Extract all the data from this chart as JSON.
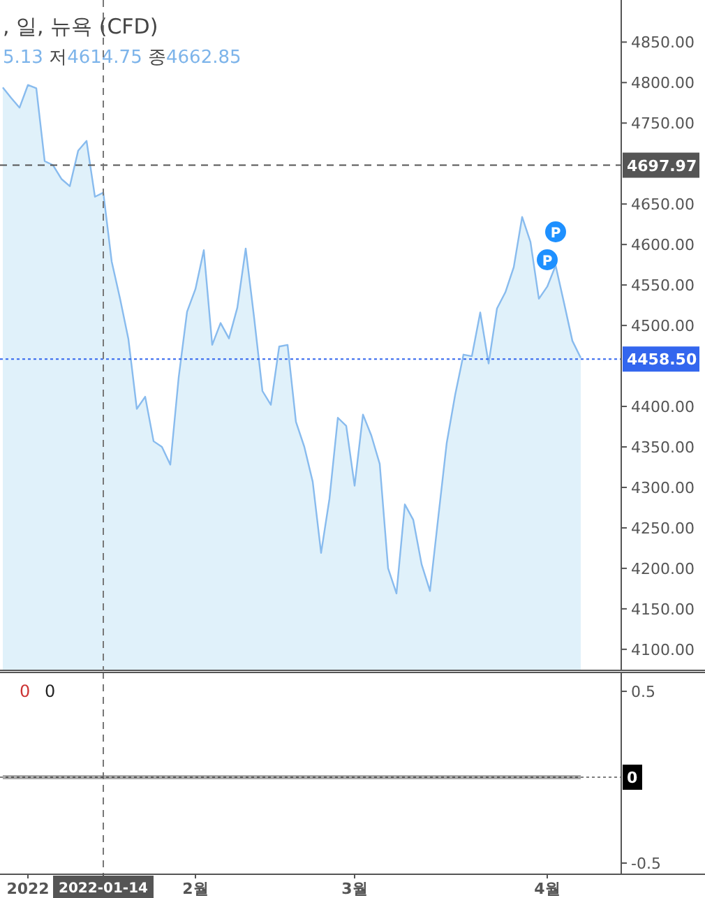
{
  "chart_data": [
    {
      "type": "area",
      "title": ", 일, 뉴욕 (CFD)",
      "subtitle": "5.13 저4614.75 종4662.85",
      "categories": [
        null,
        null,
        null,
        null,
        null,
        null,
        null,
        null,
        null,
        null,
        null,
        null,
        null,
        null,
        null,
        null,
        null,
        null,
        null,
        null,
        null,
        null,
        null,
        null,
        null,
        null,
        null,
        null,
        null,
        null,
        null,
        null,
        null,
        null,
        null,
        null,
        null,
        null,
        null,
        null,
        null,
        null,
        null,
        null,
        null,
        null,
        null,
        null,
        null,
        null,
        null,
        null,
        null,
        null,
        null,
        null,
        null,
        null,
        null,
        null,
        null,
        null,
        null,
        null,
        null,
        null,
        null,
        null,
        null,
        null
      ],
      "series": [
        {
          "color": "#88bbee",
          "values": [
            4794,
            4781,
            4769,
            4797,
            4793,
            4703,
            4698,
            4681,
            4672,
            4716,
            4728,
            4659,
            4664,
            4579,
            4533,
            4483,
            4397,
            4412,
            4357,
            4350,
            4328,
            4436,
            4517,
            4545,
            4593,
            4476,
            4503,
            4484,
            4522,
            4595,
            4510,
            4419,
            4402,
            4474,
            4476,
            4381,
            4350,
            4307,
            4219,
            4286,
            4386,
            4376,
            4302,
            4390,
            4364,
            4329,
            4200,
            4169,
            4279,
            4260,
            4205,
            4172,
            4264,
            4355,
            4414,
            4464,
            4462,
            4516,
            4453,
            4521,
            4541,
            4572,
            4634,
            4603,
            4533,
            4548,
            4574,
            4528,
            4481,
            4460
          ]
        }
      ],
      "ylim": [
        4074,
        4902
      ],
      "yticks": [
        {
          "value": 4100,
          "label": "4100.00"
        },
        {
          "value": 4150,
          "label": "4150.00"
        },
        {
          "value": 4200,
          "label": "4200.00"
        },
        {
          "value": 4250,
          "label": "4250.00"
        },
        {
          "value": 4300,
          "label": "4300.00"
        },
        {
          "value": 4350,
          "label": "4350.00"
        },
        {
          "value": 4400,
          "label": "4400.00"
        },
        {
          "value": 4500,
          "label": "4500.00"
        },
        {
          "value": 4550,
          "label": "4550.00"
        },
        {
          "value": 4600,
          "label": "4600.00"
        },
        {
          "value": 4650,
          "label": "4650.00"
        },
        {
          "value": 4750,
          "label": "4750.00"
        },
        {
          "value": 4800,
          "label": "4800.00"
        },
        {
          "value": 4850,
          "label": "4850.00"
        }
      ],
      "ref_lines": [
        {
          "axis": "y",
          "value": 4697.97,
          "label": "4697.97",
          "color": "#555555",
          "line_style": "dashed"
        },
        {
          "axis": "y",
          "value": 4458.5,
          "label": "4458.50",
          "color": "#3366ee",
          "line_style": "dotted"
        }
      ],
      "annotations": [
        "P",
        "P"
      ]
    },
    {
      "type": "line",
      "categories": [
        null,
        null,
        null,
        "2022",
        null,
        null,
        null,
        null,
        null,
        null,
        null,
        null,
        "2022-01-14",
        null,
        null,
        null,
        null,
        null,
        null,
        null,
        null,
        null,
        null,
        "2월",
        null,
        null,
        null,
        null,
        null,
        null,
        null,
        null,
        null,
        null,
        null,
        null,
        null,
        null,
        null,
        null,
        null,
        null,
        "3월",
        null,
        null,
        null,
        null,
        null,
        null,
        null,
        null,
        null,
        null,
        null,
        null,
        null,
        null,
        null,
        null,
        null,
        null,
        null,
        null,
        null,
        null,
        "4월",
        null,
        null,
        null,
        null
      ],
      "series": [
        {
          "color": "#aaaaaa",
          "values": [
            0,
            0,
            0,
            0,
            0,
            0,
            0,
            0,
            0,
            0,
            0,
            0,
            0,
            0,
            0,
            0,
            0,
            0,
            0,
            0,
            0,
            0,
            0,
            0,
            0,
            0,
            0,
            0,
            0,
            0,
            0,
            0,
            0,
            0,
            0,
            0,
            0,
            0,
            0,
            0,
            0,
            0,
            0,
            0,
            0,
            0,
            0,
            0,
            0,
            0,
            0,
            0,
            0,
            0,
            0,
            0,
            0,
            0,
            0,
            0,
            0,
            0,
            0,
            0,
            0,
            0,
            0,
            0,
            0,
            0
          ]
        }
      ],
      "ylim": [
        -0.565,
        0.614
      ],
      "yticks": [
        0.5,
        -0.5
      ],
      "ref_lines": [
        {
          "axis": "y",
          "value": 0,
          "label": "0",
          "color": "#000000",
          "line_style": "dotted"
        },
        {
          "axis": "x",
          "value": "2022-01-14",
          "color": "#777777",
          "line_style": "dashed"
        }
      ],
      "annotations": [
        "0",
        "0"
      ]
    }
  ]
}
